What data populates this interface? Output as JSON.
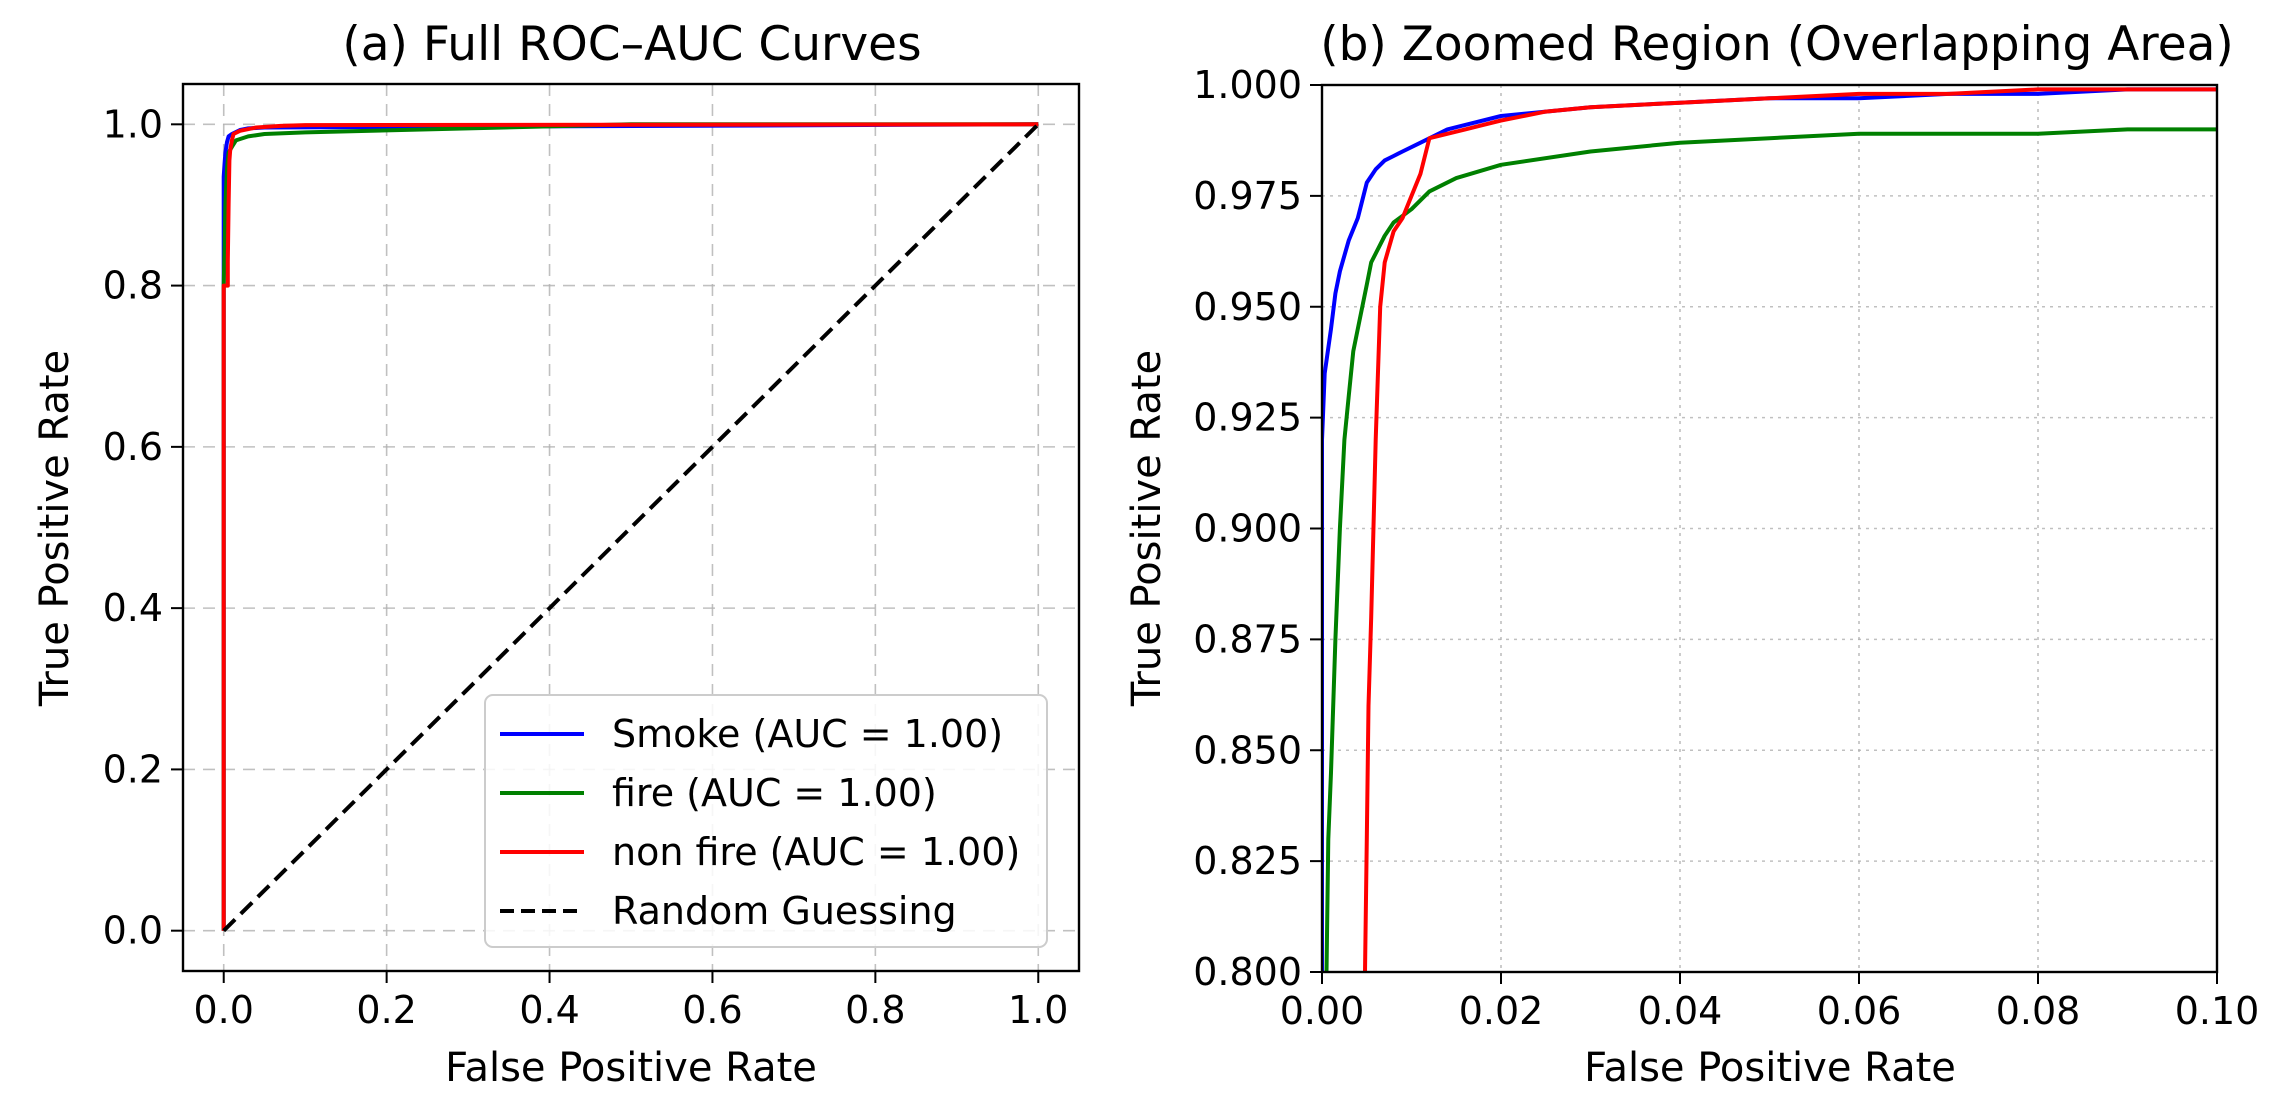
{
  "figure": {
    "chart_data": [
      {
        "type": "line",
        "title": "(a) Full ROC–AUC Curves",
        "xlabel": "False Positive Rate",
        "ylabel": "True Positive Rate",
        "xlim": [
          -0.05,
          1.05
        ],
        "ylim": [
          -0.05,
          1.05
        ],
        "xticks": [
          0.0,
          0.2,
          0.4,
          0.6,
          0.8,
          1.0
        ],
        "xtick_labels": [
          "0.0",
          "0.2",
          "0.4",
          "0.6",
          "0.8",
          "1.0"
        ],
        "yticks": [
          0.0,
          0.2,
          0.4,
          0.6,
          0.8,
          1.0
        ],
        "ytick_labels": [
          "0.0",
          "0.2",
          "0.4",
          "0.6",
          "0.8",
          "1.0"
        ],
        "grid": "dashed",
        "legend_position": "lower-right",
        "series": [
          {
            "name": "Smoke (AUC = 1.00)",
            "color": "#0000ff",
            "style": "solid",
            "x": [
              0.0,
              0.0,
              0.0,
              0.001,
              0.002,
              0.004,
              0.006,
              0.01,
              0.02,
              0.03,
              0.05,
              1.0
            ],
            "y": [
              0.0,
              0.8,
              0.935,
              0.95,
              0.965,
              0.978,
              0.985,
              0.988,
              0.993,
              0.995,
              0.996,
              1.0
            ]
          },
          {
            "name": "fire (AUC = 1.00)",
            "color": "#008000",
            "style": "solid",
            "x": [
              0.0,
              0.0,
              0.001,
              0.002,
              0.004,
              0.006,
              0.01,
              0.015,
              0.03,
              0.05,
              0.1,
              0.3,
              0.5,
              1.0
            ],
            "y": [
              0.0,
              0.8,
              0.84,
              0.9,
              0.945,
              0.965,
              0.972,
              0.98,
              0.985,
              0.988,
              0.99,
              0.995,
              1.0,
              1.0
            ]
          },
          {
            "name": "non fire (AUC = 1.00)",
            "color": "#ff0000",
            "style": "solid",
            "x": [
              0.0,
              0.0,
              0.005,
              0.005,
              0.006,
              0.007,
              0.008,
              0.01,
              0.012,
              0.02,
              0.04,
              0.07,
              0.1,
              1.0
            ],
            "y": [
              0.0,
              0.8,
              0.8,
              0.83,
              0.9,
              0.955,
              0.968,
              0.98,
              0.988,
              0.992,
              0.996,
              0.998,
              0.999,
              1.0
            ]
          },
          {
            "name": "Random Guessing",
            "color": "#000000",
            "style": "dashed",
            "x": [
              0.0,
              1.0
            ],
            "y": [
              0.0,
              1.0
            ]
          }
        ]
      },
      {
        "type": "line",
        "title": "(b) Zoomed Region (Overlapping Area)",
        "xlabel": "False Positive Rate",
        "ylabel": "True Positive Rate",
        "xlim": [
          0.0,
          0.1
        ],
        "ylim": [
          0.8,
          1.0
        ],
        "xticks": [
          0.0,
          0.02,
          0.04,
          0.06,
          0.08,
          0.1
        ],
        "xtick_labels": [
          "0.00",
          "0.02",
          "0.04",
          "0.06",
          "0.08",
          "0.10"
        ],
        "yticks": [
          0.8,
          0.825,
          0.85,
          0.875,
          0.9,
          0.925,
          0.95,
          0.975,
          1.0
        ],
        "ytick_labels": [
          "0.800",
          "0.825",
          "0.850",
          "0.875",
          "0.900",
          "0.925",
          "0.950",
          "0.975",
          "1.000"
        ],
        "grid": "dotted",
        "series": [
          {
            "name": "Smoke",
            "color": "#0000ff",
            "style": "solid",
            "x": [
              0.0,
              0.0,
              0.0003,
              0.001,
              0.0015,
              0.002,
              0.003,
              0.004,
              0.005,
              0.006,
              0.007,
              0.008,
              0.009,
              0.011,
              0.014,
              0.016,
              0.02,
              0.025,
              0.03,
              0.04,
              0.05,
              0.06,
              0.07,
              0.08,
              0.09,
              0.1
            ],
            "y": [
              0.8,
              0.92,
              0.935,
              0.945,
              0.953,
              0.958,
              0.965,
              0.97,
              0.978,
              0.981,
              0.983,
              0.984,
              0.985,
              0.987,
              0.99,
              0.991,
              0.993,
              0.994,
              0.995,
              0.996,
              0.997,
              0.997,
              0.998,
              0.998,
              0.999,
              0.999
            ]
          },
          {
            "name": "fire",
            "color": "#008000",
            "style": "solid",
            "x": [
              0.0005,
              0.0007,
              0.001,
              0.0015,
              0.002,
              0.0025,
              0.003,
              0.0035,
              0.004,
              0.005,
              0.0055,
              0.006,
              0.007,
              0.008,
              0.01,
              0.012,
              0.015,
              0.02,
              0.03,
              0.04,
              0.05,
              0.06,
              0.07,
              0.08,
              0.09,
              0.1
            ],
            "y": [
              0.8,
              0.83,
              0.845,
              0.875,
              0.9,
              0.92,
              0.93,
              0.94,
              0.945,
              0.955,
              0.96,
              0.962,
              0.966,
              0.969,
              0.972,
              0.976,
              0.979,
              0.982,
              0.985,
              0.987,
              0.988,
              0.989,
              0.989,
              0.989,
              0.99,
              0.99
            ]
          },
          {
            "name": "non fire",
            "color": "#ff0000",
            "style": "solid",
            "x": [
              0.0048,
              0.005,
              0.0052,
              0.0055,
              0.006,
              0.0065,
              0.007,
              0.008,
              0.009,
              0.01,
              0.011,
              0.012,
              0.014,
              0.016,
              0.02,
              0.025,
              0.03,
              0.04,
              0.05,
              0.06,
              0.07,
              0.08,
              0.09,
              0.1
            ],
            "y": [
              0.8,
              0.83,
              0.86,
              0.88,
              0.92,
              0.95,
              0.96,
              0.967,
              0.97,
              0.975,
              0.98,
              0.988,
              0.989,
              0.99,
              0.992,
              0.994,
              0.995,
              0.996,
              0.997,
              0.998,
              0.998,
              0.999,
              0.999,
              0.999
            ]
          }
        ]
      }
    ]
  }
}
